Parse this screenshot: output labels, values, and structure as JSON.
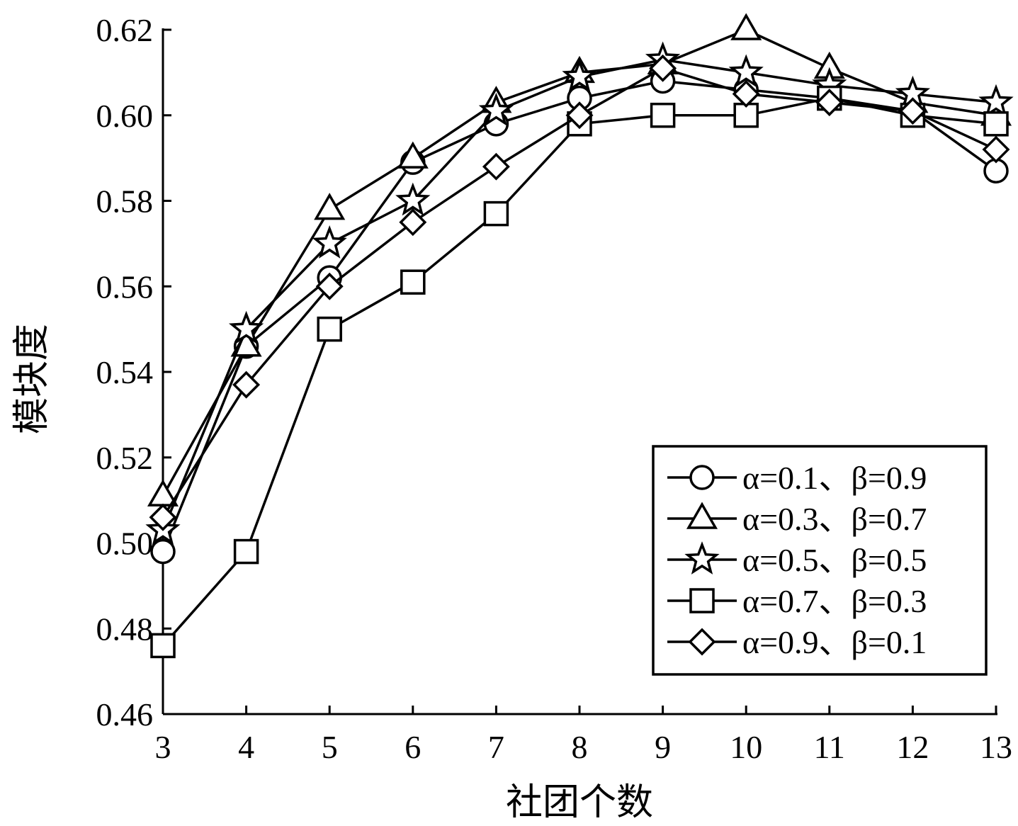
{
  "chart_data": {
    "type": "line",
    "xlabel": "社团个数",
    "ylabel": "模块度",
    "x": [
      3,
      4,
      5,
      6,
      7,
      8,
      9,
      10,
      11,
      12,
      13
    ],
    "xlim": [
      3,
      13
    ],
    "ylim": [
      0.46,
      0.62
    ],
    "x_ticks": [
      "3",
      "4",
      "5",
      "6",
      "7",
      "8",
      "9",
      "10",
      "11",
      "12",
      "13"
    ],
    "y_ticks": [
      "0.46",
      "0.48",
      "0.50",
      "0.52",
      "0.54",
      "0.56",
      "0.58",
      "0.60",
      "0.62"
    ],
    "grid": false,
    "legend_position": "bottom-right",
    "series": [
      {
        "name": "α=0.1、β=0.9",
        "marker": "circle",
        "values": [
          0.498,
          0.546,
          0.562,
          0.589,
          0.598,
          0.604,
          0.608,
          0.606,
          0.604,
          0.601,
          0.587
        ]
      },
      {
        "name": "α=0.3、β=0.7",
        "marker": "triangle",
        "values": [
          0.511,
          0.546,
          0.578,
          0.59,
          0.603,
          0.61,
          0.612,
          0.62,
          0.611,
          0.603,
          0.6
        ]
      },
      {
        "name": "α=0.5、β=0.5",
        "marker": "star",
        "values": [
          0.503,
          0.55,
          0.57,
          0.58,
          0.601,
          0.609,
          0.613,
          0.61,
          0.607,
          0.605,
          0.603
        ]
      },
      {
        "name": "α=0.7、β=0.3",
        "marker": "square",
        "values": [
          0.476,
          0.498,
          0.55,
          0.561,
          0.577,
          0.598,
          0.6,
          0.6,
          0.604,
          0.6,
          0.598
        ]
      },
      {
        "name": "α=0.9、β=0.1",
        "marker": "diamond",
        "values": [
          0.506,
          0.537,
          0.56,
          0.575,
          0.588,
          0.6,
          0.611,
          0.605,
          0.603,
          0.601,
          0.592
        ]
      }
    ]
  }
}
